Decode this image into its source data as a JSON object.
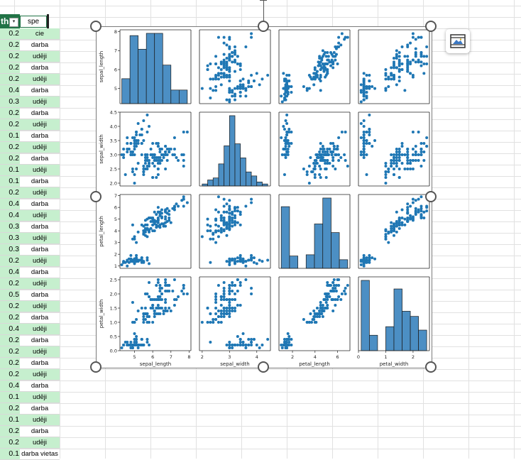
{
  "sheet": {
    "header_col1": "th",
    "header_col2": "spe",
    "filter_icon": "filter-dropdown-icon",
    "rows": [
      {
        "num": "0.2",
        "text": "cie"
      },
      {
        "num": "0.2",
        "text": "darba"
      },
      {
        "num": "0.2",
        "text": "udēji"
      },
      {
        "num": "0.2",
        "text": "darba"
      },
      {
        "num": "0.2",
        "text": "udēji"
      },
      {
        "num": "0.4",
        "text": "darba"
      },
      {
        "num": "0.3",
        "text": "udēji"
      },
      {
        "num": "0.2",
        "text": "darba"
      },
      {
        "num": "0.2",
        "text": "udēji"
      },
      {
        "num": "0.1",
        "text": "darba"
      },
      {
        "num": "0.2",
        "text": "udēji"
      },
      {
        "num": "0.2",
        "text": "darba"
      },
      {
        "num": "0.1",
        "text": "udēji"
      },
      {
        "num": "0.1",
        "text": "darba"
      },
      {
        "num": "0.2",
        "text": "udēji"
      },
      {
        "num": "0.4",
        "text": "darba"
      },
      {
        "num": "0.4",
        "text": "udēji"
      },
      {
        "num": "0.3",
        "text": "darba"
      },
      {
        "num": "0.3",
        "text": "udēji"
      },
      {
        "num": "0.3",
        "text": "darba"
      },
      {
        "num": "0.2",
        "text": "udēji"
      },
      {
        "num": "0.4",
        "text": "darba"
      },
      {
        "num": "0.2",
        "text": "udēji"
      },
      {
        "num": "0.5",
        "text": "darba"
      },
      {
        "num": "0.2",
        "text": "udēji"
      },
      {
        "num": "0.2",
        "text": "darba"
      },
      {
        "num": "0.4",
        "text": "udēji"
      },
      {
        "num": "0.2",
        "text": "darba"
      },
      {
        "num": "0.2",
        "text": "udēji"
      },
      {
        "num": "0.2",
        "text": "darba"
      },
      {
        "num": "0.2",
        "text": "udēji"
      },
      {
        "num": "0.4",
        "text": "darba"
      },
      {
        "num": "0.1",
        "text": "udēji"
      },
      {
        "num": "0.2",
        "text": "darba"
      },
      {
        "num": "0.1",
        "text": "udēji"
      },
      {
        "num": "0.2",
        "text": "darba"
      },
      {
        "num": "0.2",
        "text": "udēji"
      },
      {
        "num": "0.1",
        "text": "darba vietas"
      }
    ]
  },
  "image_format_icon": "picture-format-icon",
  "colors": {
    "accent": "#217346",
    "highlight": "#c6efce",
    "point": "#1f77b4",
    "bar": "#4c8fc4"
  },
  "chart_data": {
    "type": "scatter",
    "variables": [
      "sepal_length",
      "sepal_width",
      "petal_length",
      "petal_width"
    ],
    "ranges": {
      "sepal_length": [
        4.2,
        8.1
      ],
      "sepal_width": [
        1.9,
        4.5
      ],
      "petal_length": [
        0.8,
        7.1
      ],
      "petal_width": [
        0,
        2.6
      ]
    },
    "ticks": {
      "sepal_length": [
        5,
        6,
        7,
        8
      ],
      "sepal_width": [
        2.0,
        2.5,
        3.0,
        3.5,
        4.0,
        4.5
      ],
      "petal_length": [
        1,
        2,
        3,
        4,
        5,
        6,
        7
      ],
      "petal_width": [
        0.0,
        0.5,
        1.0,
        1.5,
        2.0,
        2.5
      ]
    },
    "xticks": {
      "sepal_length": [
        5,
        6,
        7,
        8
      ],
      "sepal_width": [
        2,
        3,
        4
      ],
      "petal_length": [
        2,
        4,
        6
      ],
      "petal_width": [
        0,
        1,
        2
      ]
    },
    "hist": {
      "sepal_length": {
        "edges": [
          4.3,
          4.75,
          5.2,
          5.65,
          6.1,
          6.55,
          7.0,
          7.45,
          7.9
        ],
        "counts": [
          11,
          30,
          24,
          31,
          31,
          17,
          6,
          6
        ]
      },
      "sepal_width": {
        "edges": [
          2.0,
          2.2,
          2.4,
          2.6,
          2.8,
          3.0,
          3.2,
          3.4,
          3.6,
          3.8,
          4.0,
          4.2,
          4.4
        ],
        "counts": [
          1,
          3,
          4,
          11,
          20,
          35,
          21,
          14,
          7,
          5,
          2,
          1
        ]
      },
      "petal_length": {
        "edges": [
          1.0,
          1.74,
          2.48,
          3.21,
          3.95,
          4.69,
          5.43,
          6.16,
          6.9
        ],
        "counts": [
          50,
          10,
          0,
          11,
          36,
          57,
          29,
          7
        ]
      },
      "petal_width": {
        "edges": [
          0.1,
          0.4,
          0.7,
          1.0,
          1.3,
          1.6,
          1.9,
          2.2,
          2.5
        ],
        "counts": [
          41,
          9,
          0,
          14,
          36,
          23,
          20,
          12
        ]
      }
    },
    "points": [
      [
        5.1,
        3.5,
        1.4,
        0.2
      ],
      [
        4.9,
        3.0,
        1.4,
        0.2
      ],
      [
        4.7,
        3.2,
        1.3,
        0.2
      ],
      [
        4.6,
        3.1,
        1.5,
        0.2
      ],
      [
        5.0,
        3.6,
        1.4,
        0.2
      ],
      [
        5.4,
        3.9,
        1.7,
        0.4
      ],
      [
        4.6,
        3.4,
        1.4,
        0.3
      ],
      [
        5.0,
        3.4,
        1.5,
        0.2
      ],
      [
        4.4,
        2.9,
        1.4,
        0.2
      ],
      [
        4.9,
        3.1,
        1.5,
        0.1
      ],
      [
        5.4,
        3.7,
        1.5,
        0.2
      ],
      [
        4.8,
        3.4,
        1.6,
        0.2
      ],
      [
        4.8,
        3.0,
        1.4,
        0.1
      ],
      [
        4.3,
        3.0,
        1.1,
        0.1
      ],
      [
        5.8,
        4.0,
        1.2,
        0.2
      ],
      [
        5.7,
        4.4,
        1.5,
        0.4
      ],
      [
        5.4,
        3.9,
        1.3,
        0.4
      ],
      [
        5.1,
        3.5,
        1.4,
        0.3
      ],
      [
        5.7,
        3.8,
        1.7,
        0.3
      ],
      [
        5.1,
        3.8,
        1.5,
        0.3
      ],
      [
        5.4,
        3.4,
        1.7,
        0.2
      ],
      [
        5.1,
        3.7,
        1.5,
        0.4
      ],
      [
        4.6,
        3.6,
        1.0,
        0.2
      ],
      [
        5.1,
        3.3,
        1.7,
        0.5
      ],
      [
        4.8,
        3.4,
        1.9,
        0.2
      ],
      [
        5.0,
        3.0,
        1.6,
        0.2
      ],
      [
        5.0,
        3.4,
        1.6,
        0.4
      ],
      [
        5.2,
        3.5,
        1.5,
        0.2
      ],
      [
        5.2,
        3.4,
        1.4,
        0.2
      ],
      [
        4.7,
        3.2,
        1.6,
        0.2
      ],
      [
        4.8,
        3.1,
        1.6,
        0.2
      ],
      [
        5.4,
        3.4,
        1.5,
        0.4
      ],
      [
        5.2,
        4.1,
        1.5,
        0.1
      ],
      [
        5.5,
        4.2,
        1.4,
        0.2
      ],
      [
        4.9,
        3.1,
        1.5,
        0.2
      ],
      [
        5.0,
        3.2,
        1.2,
        0.2
      ],
      [
        5.5,
        3.5,
        1.3,
        0.2
      ],
      [
        4.9,
        3.6,
        1.4,
        0.1
      ],
      [
        4.4,
        3.0,
        1.3,
        0.2
      ],
      [
        5.1,
        3.4,
        1.5,
        0.2
      ],
      [
        5.0,
        3.5,
        1.3,
        0.3
      ],
      [
        4.5,
        2.3,
        1.3,
        0.3
      ],
      [
        4.4,
        3.2,
        1.3,
        0.2
      ],
      [
        5.0,
        3.5,
        1.6,
        0.6
      ],
      [
        5.1,
        3.8,
        1.9,
        0.4
      ],
      [
        4.8,
        3.0,
        1.4,
        0.3
      ],
      [
        5.1,
        3.8,
        1.6,
        0.2
      ],
      [
        4.6,
        3.2,
        1.4,
        0.2
      ],
      [
        5.3,
        3.7,
        1.5,
        0.2
      ],
      [
        5.0,
        3.3,
        1.4,
        0.2
      ],
      [
        7.0,
        3.2,
        4.7,
        1.4
      ],
      [
        6.4,
        3.2,
        4.5,
        1.5
      ],
      [
        6.9,
        3.1,
        4.9,
        1.5
      ],
      [
        5.5,
        2.3,
        4.0,
        1.3
      ],
      [
        6.5,
        2.8,
        4.6,
        1.5
      ],
      [
        5.7,
        2.8,
        4.5,
        1.3
      ],
      [
        6.3,
        3.3,
        4.7,
        1.6
      ],
      [
        4.9,
        2.4,
        3.3,
        1.0
      ],
      [
        6.6,
        2.9,
        4.6,
        1.3
      ],
      [
        5.2,
        2.7,
        3.9,
        1.4
      ],
      [
        5.0,
        2.0,
        3.5,
        1.0
      ],
      [
        5.9,
        3.0,
        4.2,
        1.5
      ],
      [
        6.0,
        2.2,
        4.0,
        1.0
      ],
      [
        6.1,
        2.9,
        4.7,
        1.4
      ],
      [
        5.6,
        2.9,
        3.6,
        1.3
      ],
      [
        6.7,
        3.1,
        4.4,
        1.4
      ],
      [
        5.6,
        3.0,
        4.5,
        1.5
      ],
      [
        5.8,
        2.7,
        4.1,
        1.0
      ],
      [
        6.2,
        2.2,
        4.5,
        1.5
      ],
      [
        5.6,
        2.5,
        3.9,
        1.1
      ],
      [
        5.9,
        3.2,
        4.8,
        1.8
      ],
      [
        6.1,
        2.8,
        4.0,
        1.3
      ],
      [
        6.3,
        2.5,
        4.9,
        1.5
      ],
      [
        6.1,
        2.8,
        4.7,
        1.2
      ],
      [
        6.4,
        2.9,
        4.3,
        1.3
      ],
      [
        6.6,
        3.0,
        4.4,
        1.4
      ],
      [
        6.8,
        2.8,
        4.8,
        1.4
      ],
      [
        6.7,
        3.0,
        5.0,
        1.7
      ],
      [
        6.0,
        2.9,
        4.5,
        1.5
      ],
      [
        5.7,
        2.6,
        3.5,
        1.0
      ],
      [
        5.5,
        2.4,
        3.8,
        1.1
      ],
      [
        5.5,
        2.4,
        3.7,
        1.0
      ],
      [
        5.8,
        2.7,
        3.9,
        1.2
      ],
      [
        6.0,
        2.7,
        5.1,
        1.6
      ],
      [
        5.4,
        3.0,
        4.5,
        1.5
      ],
      [
        6.0,
        3.4,
        4.5,
        1.6
      ],
      [
        6.7,
        3.1,
        4.7,
        1.5
      ],
      [
        6.3,
        2.3,
        4.4,
        1.3
      ],
      [
        5.6,
        3.0,
        4.1,
        1.3
      ],
      [
        5.5,
        2.5,
        4.0,
        1.3
      ],
      [
        5.5,
        2.6,
        4.4,
        1.2
      ],
      [
        6.1,
        3.0,
        4.6,
        1.4
      ],
      [
        5.8,
        2.6,
        4.0,
        1.2
      ],
      [
        5.0,
        2.3,
        3.3,
        1.0
      ],
      [
        5.6,
        2.7,
        4.2,
        1.3
      ],
      [
        5.7,
        3.0,
        4.2,
        1.2
      ],
      [
        5.7,
        2.9,
        4.2,
        1.3
      ],
      [
        6.2,
        2.9,
        4.3,
        1.3
      ],
      [
        5.1,
        2.5,
        3.0,
        1.1
      ],
      [
        5.7,
        2.8,
        4.1,
        1.3
      ],
      [
        6.3,
        3.3,
        6.0,
        2.5
      ],
      [
        5.8,
        2.7,
        5.1,
        1.9
      ],
      [
        7.1,
        3.0,
        5.9,
        2.1
      ],
      [
        6.3,
        2.9,
        5.6,
        1.8
      ],
      [
        6.5,
        3.0,
        5.8,
        2.2
      ],
      [
        7.6,
        3.0,
        6.6,
        2.1
      ],
      [
        4.9,
        2.5,
        4.5,
        1.7
      ],
      [
        7.3,
        2.9,
        6.3,
        1.8
      ],
      [
        6.7,
        2.5,
        5.8,
        1.8
      ],
      [
        7.2,
        3.6,
        6.1,
        2.5
      ],
      [
        6.5,
        3.2,
        5.1,
        2.0
      ],
      [
        6.4,
        2.7,
        5.3,
        1.9
      ],
      [
        6.8,
        3.0,
        5.5,
        2.1
      ],
      [
        5.7,
        2.5,
        5.0,
        2.0
      ],
      [
        5.8,
        2.8,
        5.1,
        2.4
      ],
      [
        6.4,
        3.2,
        5.3,
        2.3
      ],
      [
        6.5,
        3.0,
        5.5,
        1.8
      ],
      [
        7.7,
        3.8,
        6.7,
        2.2
      ],
      [
        7.7,
        2.6,
        6.9,
        2.3
      ],
      [
        6.0,
        2.2,
        5.0,
        1.5
      ],
      [
        6.9,
        3.2,
        5.7,
        2.3
      ],
      [
        5.6,
        2.8,
        4.9,
        2.0
      ],
      [
        7.7,
        2.8,
        6.7,
        2.0
      ],
      [
        6.3,
        2.7,
        4.9,
        1.8
      ],
      [
        6.7,
        3.3,
        5.7,
        2.1
      ],
      [
        7.2,
        3.2,
        6.0,
        1.8
      ],
      [
        6.2,
        2.8,
        4.8,
        1.8
      ],
      [
        6.1,
        3.0,
        4.9,
        1.8
      ],
      [
        6.4,
        2.8,
        5.6,
        2.1
      ],
      [
        7.2,
        3.0,
        5.8,
        1.6
      ],
      [
        7.4,
        2.8,
        6.1,
        1.9
      ],
      [
        7.9,
        3.8,
        6.4,
        2.0
      ],
      [
        6.4,
        2.8,
        5.6,
        2.2
      ],
      [
        6.3,
        2.8,
        5.1,
        1.5
      ],
      [
        6.1,
        2.6,
        5.6,
        1.4
      ],
      [
        7.7,
        3.0,
        6.1,
        2.3
      ],
      [
        6.3,
        3.4,
        5.6,
        2.4
      ],
      [
        6.4,
        3.1,
        5.5,
        1.8
      ],
      [
        6.0,
        3.0,
        4.8,
        1.8
      ],
      [
        6.9,
        3.1,
        5.4,
        2.1
      ],
      [
        6.7,
        3.1,
        5.6,
        2.4
      ],
      [
        6.9,
        3.1,
        5.1,
        2.3
      ],
      [
        5.8,
        2.7,
        5.1,
        1.9
      ],
      [
        6.8,
        3.2,
        5.9,
        2.3
      ],
      [
        6.7,
        3.3,
        5.7,
        2.5
      ],
      [
        6.7,
        3.0,
        5.2,
        2.3
      ],
      [
        6.3,
        2.5,
        5.0,
        1.9
      ],
      [
        6.5,
        3.0,
        5.2,
        2.0
      ],
      [
        6.2,
        3.4,
        5.4,
        2.3
      ],
      [
        5.9,
        3.0,
        5.1,
        1.8
      ]
    ]
  }
}
